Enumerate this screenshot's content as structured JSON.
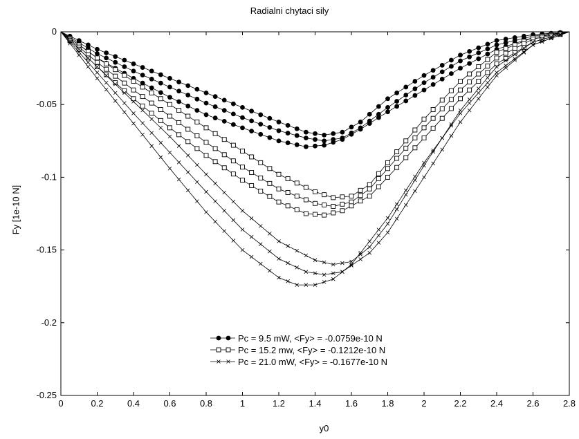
{
  "chart_data": {
    "type": "line",
    "title": "Radialni chytaci sily",
    "xlabel": "y0",
    "ylabel": "Fy [1e-10 N]",
    "xlim": [
      0,
      2.8
    ],
    "ylim": [
      -0.25,
      0
    ],
    "xticks": [
      0,
      0.2,
      0.4,
      0.6,
      0.8,
      1,
      1.2,
      1.4,
      1.6,
      1.8,
      2,
      2.2,
      2.4,
      2.6,
      2.8
    ],
    "xtick_labels": [
      "0",
      "0.2",
      "0.4",
      "0.6",
      "0.8",
      "1",
      "1.2",
      "1.4",
      "1.6",
      "1.8",
      "2",
      "2.2",
      "2.4",
      "2.6",
      "2.8"
    ],
    "yticks": [
      0,
      -0.05,
      -0.1,
      -0.15,
      -0.2,
      -0.25
    ],
    "ytick_labels": [
      "0",
      "-0.05",
      "-0.1",
      "-0.15",
      "-0.2",
      "-0.25"
    ],
    "grid": false,
    "legend_position": "lower-center",
    "series": [
      {
        "name": "Pc = 9.5 mW, <Fy> = -0.0759e-10 N",
        "marker": "filled-circle",
        "color": "#000000",
        "curves": [
          {
            "x": [
              0,
              0.2,
              0.4,
              0.6,
              0.8,
              1.0,
              1.2,
              1.35,
              1.45,
              1.55,
              1.65,
              1.8,
              2.0,
              2.2,
              2.4,
              2.6,
              2.8
            ],
            "y": [
              0,
              -0.012,
              -0.022,
              -0.032,
              -0.042,
              -0.052,
              -0.062,
              -0.069,
              -0.071,
              -0.069,
              -0.062,
              -0.046,
              -0.03,
              -0.016,
              -0.006,
              -0.002,
              0
            ]
          },
          {
            "x": [
              0,
              0.2,
              0.4,
              0.6,
              0.8,
              1.0,
              1.2,
              1.35,
              1.45,
              1.55,
              1.65,
              1.8,
              2.0,
              2.2,
              2.4,
              2.6,
              2.8
            ],
            "y": [
              0,
              -0.015,
              -0.027,
              -0.038,
              -0.049,
              -0.059,
              -0.068,
              -0.073,
              -0.075,
              -0.073,
              -0.066,
              -0.052,
              -0.035,
              -0.02,
              -0.009,
              -0.003,
              0
            ]
          },
          {
            "x": [
              0,
              0.2,
              0.4,
              0.6,
              0.8,
              1.0,
              1.2,
              1.35,
              1.45,
              1.55,
              1.65,
              1.8,
              2.0,
              2.2,
              2.4,
              2.6,
              2.8
            ],
            "y": [
              0,
              -0.018,
              -0.032,
              -0.045,
              -0.057,
              -0.066,
              -0.075,
              -0.079,
              -0.078,
              -0.074,
              -0.067,
              -0.055,
              -0.04,
              -0.025,
              -0.012,
              -0.004,
              0
            ]
          }
        ]
      },
      {
        "name": "Pc = 15.2 mw, <Fy> = -0.1212e-10 N",
        "marker": "open-square",
        "color": "#000000",
        "curves": [
          {
            "x": [
              0,
              0.2,
              0.4,
              0.6,
              0.8,
              1.0,
              1.2,
              1.4,
              1.5,
              1.6,
              1.7,
              1.8,
              2.0,
              2.2,
              2.4,
              2.6,
              2.8
            ],
            "y": [
              0,
              -0.018,
              -0.034,
              -0.05,
              -0.066,
              -0.082,
              -0.098,
              -0.11,
              -0.114,
              -0.113,
              -0.105,
              -0.09,
              -0.06,
              -0.034,
              -0.014,
              -0.004,
              0
            ]
          },
          {
            "x": [
              0,
              0.2,
              0.4,
              0.6,
              0.8,
              1.0,
              1.2,
              1.4,
              1.5,
              1.6,
              1.7,
              1.8,
              2.0,
              2.2,
              2.4,
              2.6,
              2.8
            ],
            "y": [
              0,
              -0.021,
              -0.04,
              -0.058,
              -0.076,
              -0.093,
              -0.108,
              -0.118,
              -0.12,
              -0.117,
              -0.108,
              -0.094,
              -0.066,
              -0.04,
              -0.018,
              -0.005,
              0
            ]
          },
          {
            "x": [
              0,
              0.2,
              0.4,
              0.6,
              0.8,
              1.0,
              1.2,
              1.35,
              1.45,
              1.55,
              1.7,
              1.8,
              2.0,
              2.2,
              2.4,
              2.6,
              2.8
            ],
            "y": [
              0,
              -0.024,
              -0.046,
              -0.066,
              -0.085,
              -0.102,
              -0.117,
              -0.125,
              -0.126,
              -0.123,
              -0.113,
              -0.1,
              -0.073,
              -0.046,
              -0.022,
              -0.007,
              0
            ]
          }
        ]
      },
      {
        "name": "Pc = 21.0 mW, <Fy> = -0.1677e-10 N",
        "marker": "cross",
        "color": "#000000",
        "curves": [
          {
            "x": [
              0,
              0.2,
              0.4,
              0.6,
              0.8,
              1.0,
              1.2,
              1.4,
              1.5,
              1.6,
              1.7,
              1.8,
              2.0,
              2.2,
              2.4,
              2.6,
              2.8
            ],
            "y": [
              0,
              -0.024,
              -0.048,
              -0.072,
              -0.098,
              -0.123,
              -0.144,
              -0.157,
              -0.16,
              -0.158,
              -0.148,
              -0.132,
              -0.092,
              -0.054,
              -0.024,
              -0.007,
              0
            ]
          },
          {
            "x": [
              0,
              0.2,
              0.4,
              0.6,
              0.8,
              1.0,
              1.2,
              1.35,
              1.45,
              1.55,
              1.7,
              1.8,
              2.0,
              2.2,
              2.4,
              2.6,
              2.8
            ],
            "y": [
              0,
              -0.028,
              -0.056,
              -0.083,
              -0.11,
              -0.136,
              -0.156,
              -0.165,
              -0.167,
              -0.165,
              -0.152,
              -0.138,
              -0.1,
              -0.062,
              -0.03,
              -0.009,
              0
            ]
          },
          {
            "x": [
              0,
              0.2,
              0.4,
              0.6,
              0.8,
              1.0,
              1.2,
              1.3,
              1.4,
              1.5,
              1.6,
              1.8,
              2.0,
              2.2,
              2.4,
              2.6,
              2.8
            ],
            "y": [
              0,
              -0.032,
              -0.063,
              -0.094,
              -0.124,
              -0.15,
              -0.169,
              -0.174,
              -0.174,
              -0.17,
              -0.16,
              -0.128,
              -0.09,
              -0.056,
              -0.028,
              -0.009,
              0
            ]
          }
        ]
      }
    ]
  }
}
